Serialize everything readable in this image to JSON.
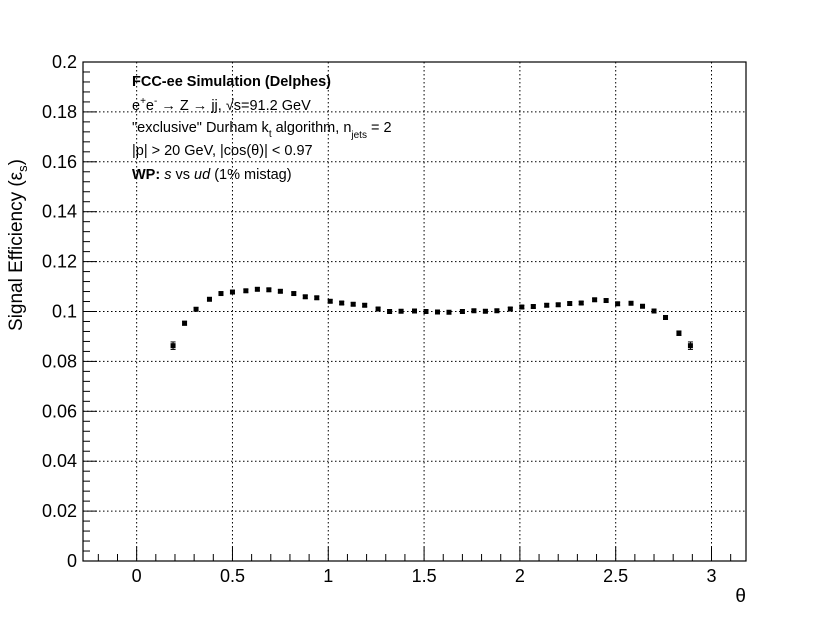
{
  "chart_data": {
    "type": "scatter",
    "xlabel": "θ",
    "ylabel": "Signal Efficiency (ε",
    "ylabel_sub": "s",
    "ylabel_close": ")",
    "xlim": [
      -0.28,
      3.18
    ],
    "ylim": [
      0,
      0.2
    ],
    "grid": true,
    "x_ticks": [
      0,
      0.5,
      1,
      1.5,
      2,
      2.5,
      3
    ],
    "x_tick_labels": [
      "0",
      "0.5",
      "1",
      "1.5",
      "2",
      "2.5",
      "3"
    ],
    "y_ticks": [
      0,
      0.02,
      0.04,
      0.06,
      0.08,
      0.1,
      0.12,
      0.14,
      0.16,
      0.18,
      0.2
    ],
    "y_tick_labels": [
      "0",
      "0.02",
      "0.04",
      "0.06",
      "0.08",
      "0.1",
      "0.12",
      "0.14",
      "0.16",
      "0.18",
      "0.2"
    ],
    "series": [
      {
        "x": [
          0.19,
          0.25,
          0.31,
          0.38,
          0.44,
          0.5,
          0.57,
          0.63,
          0.69,
          0.75,
          0.82,
          0.88,
          0.94,
          1.01,
          1.07,
          1.13,
          1.19,
          1.26,
          1.32,
          1.38,
          1.45,
          1.51,
          1.57,
          1.63,
          1.7,
          1.76,
          1.82,
          1.88,
          1.95,
          2.01,
          2.07,
          2.14,
          2.2,
          2.26,
          2.32,
          2.39,
          2.45,
          2.51,
          2.58,
          2.64,
          2.7,
          2.76,
          2.83,
          2.89
        ],
        "y": [
          0.0863,
          0.0953,
          0.1009,
          0.1049,
          0.1072,
          0.1078,
          0.1083,
          0.1089,
          0.1087,
          0.1081,
          0.1072,
          0.1059,
          0.1055,
          0.1041,
          0.1034,
          0.1029,
          0.1025,
          0.101,
          0.1,
          0.1001,
          0.1002,
          0.1,
          0.0998,
          0.0997,
          0.1,
          0.1003,
          0.1001,
          0.1003,
          0.101,
          0.1018,
          0.102,
          0.1025,
          0.1027,
          0.1032,
          0.1034,
          0.1047,
          0.1044,
          0.1031,
          0.1033,
          0.1021,
          0.1002,
          0.0976,
          0.0913,
          0.0863
        ],
        "err": [
          0.0015,
          0.0008,
          0.0007,
          0.0006,
          0.0006,
          0.0006,
          0.0006,
          0.0006,
          0.0006,
          0.0006,
          0.0006,
          0.0006,
          0.0006,
          0.0006,
          0.0006,
          0.0006,
          0.0006,
          0.0006,
          0.0006,
          0.0006,
          0.0006,
          0.0006,
          0.0006,
          0.0006,
          0.0006,
          0.0006,
          0.0006,
          0.0006,
          0.0006,
          0.0006,
          0.0006,
          0.0006,
          0.0006,
          0.0006,
          0.0006,
          0.0006,
          0.0006,
          0.0006,
          0.0006,
          0.0006,
          0.0007,
          0.0008,
          0.0009,
          0.0015
        ],
        "color": "#000000"
      }
    ],
    "annotations": {
      "line1": "FCC-ee Simulation (Delphes)",
      "line2_a": "e",
      "line2_sup1": "+",
      "line2_b": "e",
      "line2_sup2": "-",
      "line2_c": " → Z → jj, √s=91.2 GeV",
      "line3_a": "\"exclusive\" Durham k",
      "line3_sub1": "t",
      "line3_b": " algorithm, n",
      "line3_sub2": "jets",
      "line3_c": " = 2",
      "line4": "|p| > 20 GeV, |cos(θ)| < 0.97",
      "line5_bold": "WP: ",
      "line5_it1": "s",
      "line5_mid": " vs ",
      "line5_it2": "ud",
      "line5_end": " (1% mistag)"
    }
  }
}
